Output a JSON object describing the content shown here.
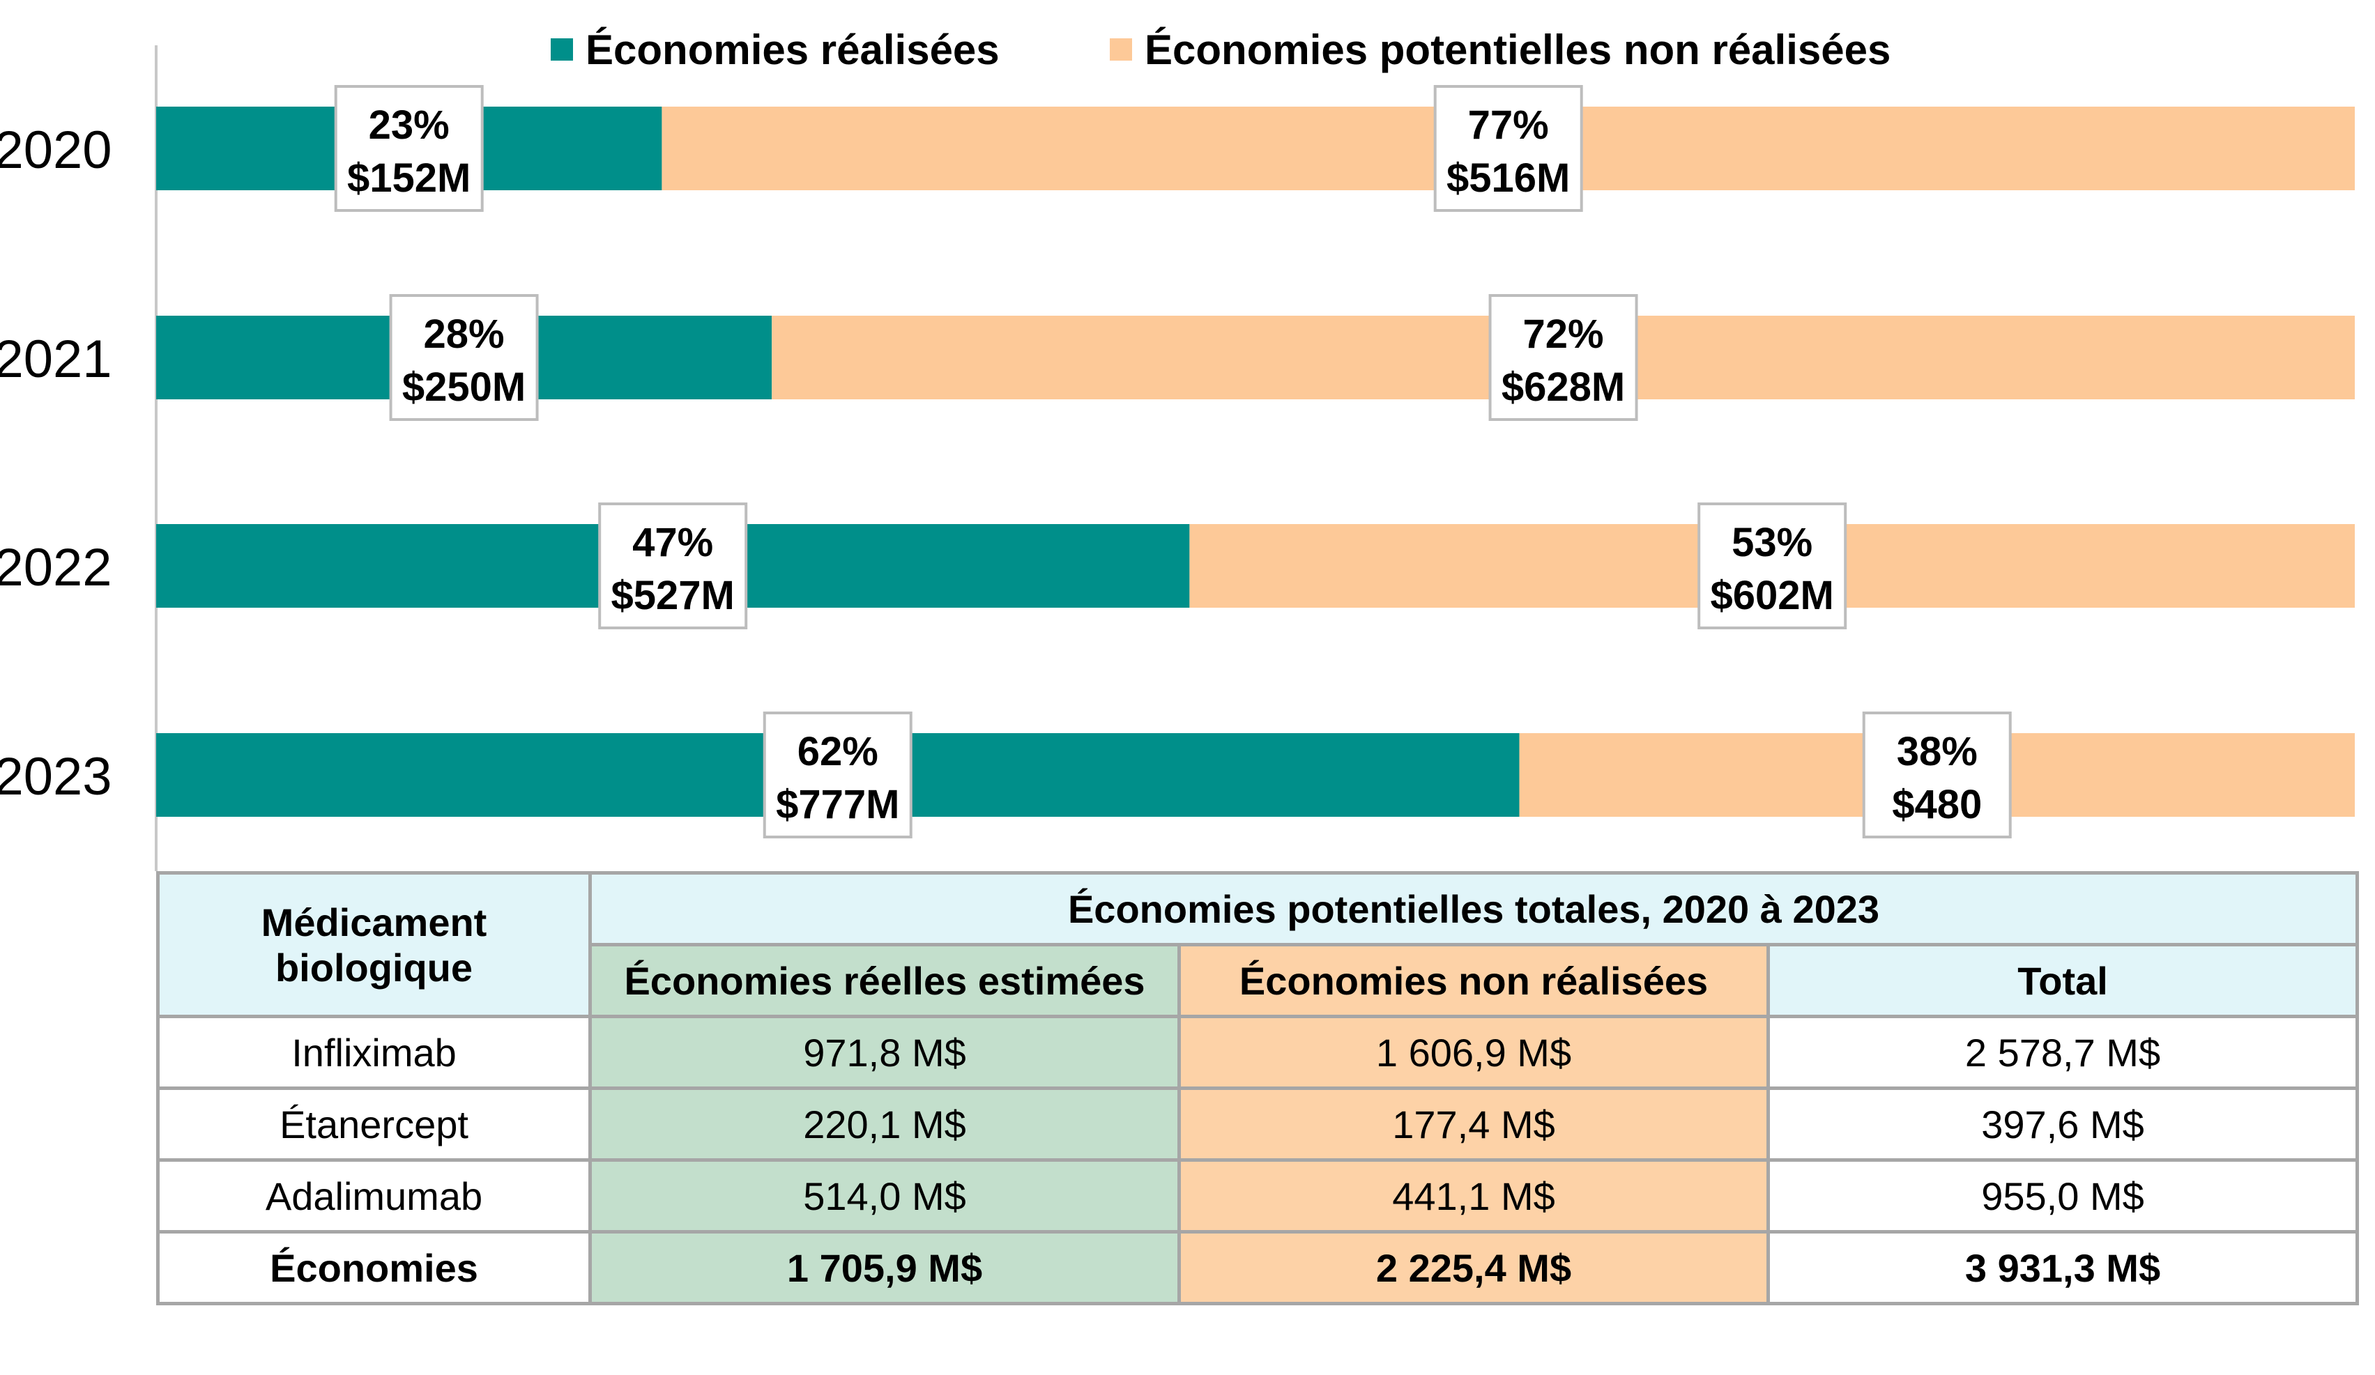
{
  "chart_data": {
    "type": "bar",
    "orientation": "horizontal",
    "stacked": true,
    "categories": [
      "2020",
      "2021",
      "2022",
      "2023"
    ],
    "series": [
      {
        "name": "Économies réalisées",
        "color": "#008f8a",
        "percent": [
          23,
          28,
          47,
          62
        ],
        "labels": [
          [
            "23%",
            "$152M"
          ],
          [
            "28%",
            "$250M"
          ],
          [
            "47%",
            "$527M"
          ],
          [
            "62%",
            "$777M"
          ]
        ]
      },
      {
        "name": "Économies potentielles non réalisées",
        "color": "#fdc998",
        "percent": [
          77,
          72,
          53,
          38
        ],
        "labels": [
          [
            "77%",
            "$516M"
          ],
          [
            "72%",
            "$628M"
          ],
          [
            "53%",
            "$602M"
          ],
          [
            "38%",
            "$480"
          ]
        ]
      }
    ],
    "xlim": [
      0,
      100
    ],
    "legend_position": "top",
    "grid": false
  },
  "table": {
    "col0_header": "Médicament biologique",
    "group_header": "Économies potentielles totales, 2020 à 2023",
    "subheaders": [
      "Économies réelles estimées",
      "Économies non réalisées",
      "Total"
    ],
    "rows": [
      {
        "name": "Infliximab",
        "real": "971,8 M$",
        "unreal": "1 606,9 M$",
        "total": "2 578,7 M$"
      },
      {
        "name": "Étanercept",
        "real": "220,1 M$",
        "unreal": "177,4 M$",
        "total": "397,6 M$"
      },
      {
        "name": "Adalimumab",
        "real": "514,0 M$",
        "unreal": "441,1 M$",
        "total": "955,0 M$"
      },
      {
        "name": "Économies",
        "real": "1 705,9 M$",
        "unreal": "2 225,4 M$",
        "total": "3 931,3 M$"
      }
    ]
  }
}
